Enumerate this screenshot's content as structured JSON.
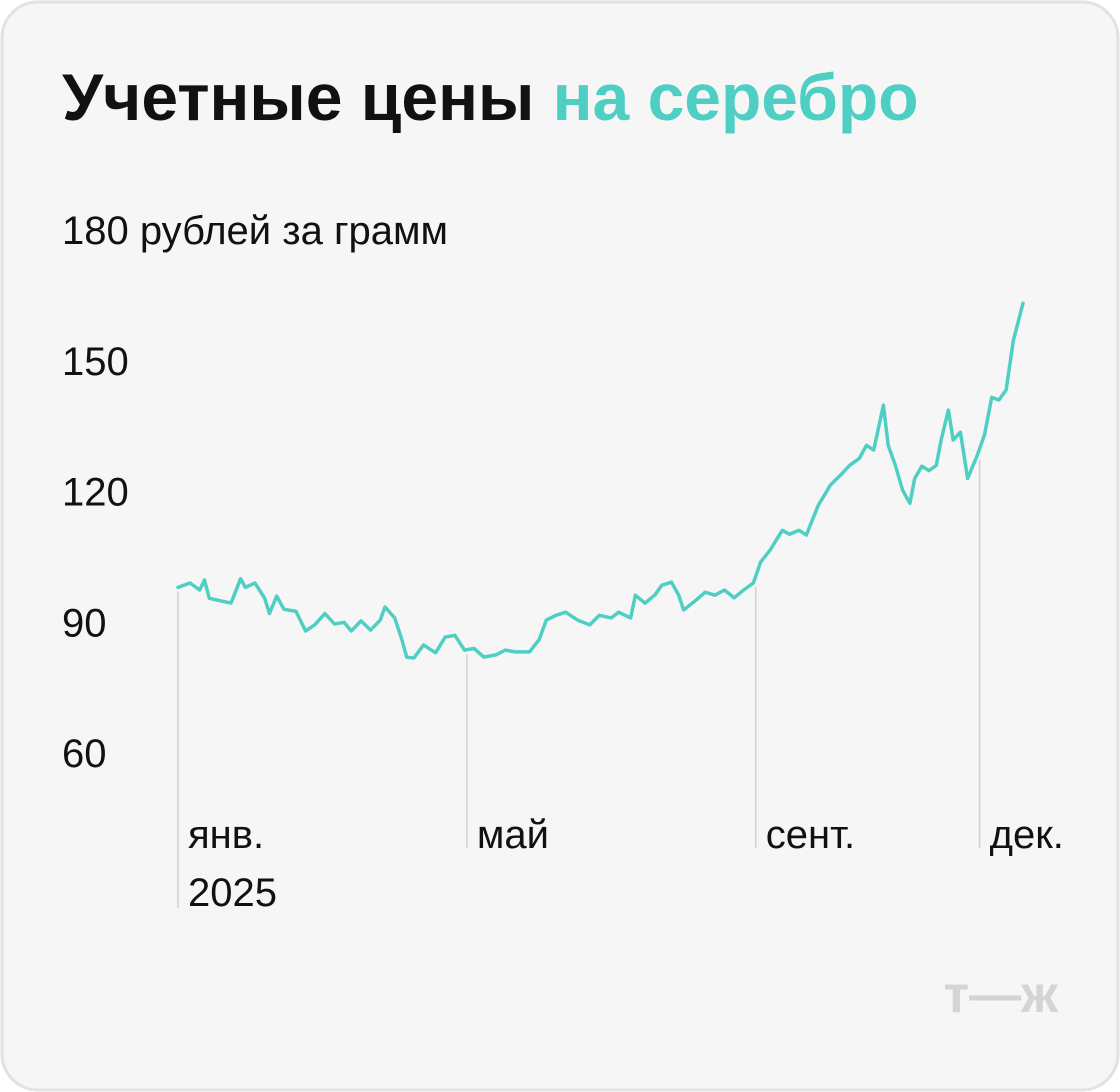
{
  "chart_data": {
    "type": "line",
    "title": "Учетные цены",
    "title_highlight": "на серебро",
    "x": [
      0,
      5,
      9,
      11,
      13,
      17,
      22,
      26,
      28,
      32,
      36,
      38,
      41,
      44,
      49,
      53,
      57,
      61,
      65,
      69,
      72,
      76,
      80,
      84,
      86,
      90,
      93,
      95,
      98,
      102,
      107,
      111,
      115,
      119,
      123,
      127,
      132,
      136,
      140,
      146,
      150,
      153,
      157,
      161,
      166,
      171,
      175,
      180,
      183,
      188,
      190,
      194,
      198,
      201,
      205,
      208,
      210,
      215,
      219,
      223,
      227,
      231,
      235,
      239,
      242,
      246,
      251,
      254,
      258,
      261,
      266,
      268,
      271,
      276,
      279,
      283,
      286,
      289,
      293,
      295,
      298,
      301,
      304,
      306,
      309,
      312,
      315,
      317,
      320,
      322,
      325,
      328,
      332,
      335,
      338,
      341,
      344,
      347,
      351
    ],
    "series": [
      {
        "name": "серебро",
        "color": "#4fcfc4",
        "values": [
          98,
          99,
          97.4,
          99.7,
          95.5,
          95,
          94.4,
          100,
          98,
          99,
          95.5,
          92,
          96,
          93,
          92.5,
          88,
          89.5,
          92,
          89.6,
          90,
          88,
          90.3,
          88.2,
          90.5,
          93.5,
          91,
          86,
          82,
          81.8,
          84.8,
          83,
          86.6,
          87,
          83.6,
          84,
          82,
          82.5,
          83.6,
          83.2,
          83.2,
          86,
          90.5,
          91.6,
          92.3,
          90.5,
          89.4,
          91.6,
          91,
          92.3,
          91,
          96.2,
          94.4,
          96.2,
          98.5,
          99.2,
          96.2,
          92.8,
          95,
          96.9,
          96.2,
          97.4,
          95.6,
          97.4,
          99,
          103.8,
          106.6,
          111.1,
          110.2,
          111.1,
          110,
          116.9,
          118.7,
          121.5,
          124.2,
          126,
          127.6,
          130.6,
          129.5,
          139.8,
          130.6,
          126,
          120.3,
          117.3,
          123,
          125.8,
          124.8,
          126,
          131.8,
          138.7,
          131.8,
          133.6,
          123,
          128.3,
          133,
          141.6,
          141,
          143.3,
          154.7,
          163.2
        ]
      }
    ],
    "xlim": [
      0,
      351
    ],
    "xticks": [
      {
        "value": 0,
        "label": [
          "янв.",
          "2025"
        ]
      },
      {
        "value": 120,
        "label": "май"
      },
      {
        "value": 240,
        "label": "сент."
      },
      {
        "value": 333,
        "label": "дек."
      }
    ],
    "ylim": [
      60,
      180
    ],
    "yticks": [
      60,
      90,
      120,
      150,
      {
        "value": 180,
        "label": "180 рублей за грамм"
      }
    ],
    "logo": "т—ж"
  }
}
